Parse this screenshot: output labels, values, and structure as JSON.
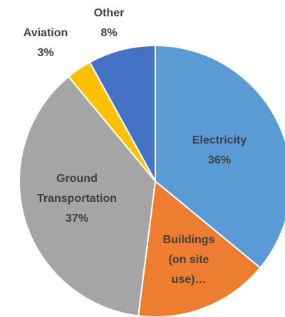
{
  "chart_data": {
    "type": "pie",
    "categories": [
      "Electricity",
      "Buildings (on site use)…",
      "Ground Transportation",
      "Aviation",
      "Other"
    ],
    "values": [
      36,
      16,
      37,
      3,
      8
    ],
    "value_labels": [
      "36%",
      null,
      "37%",
      "3%",
      "8%"
    ],
    "colors": [
      "#5b9bd5",
      "#ed7d31",
      "#a5a5a5",
      "#ffc000",
      "#4472c4"
    ]
  }
}
